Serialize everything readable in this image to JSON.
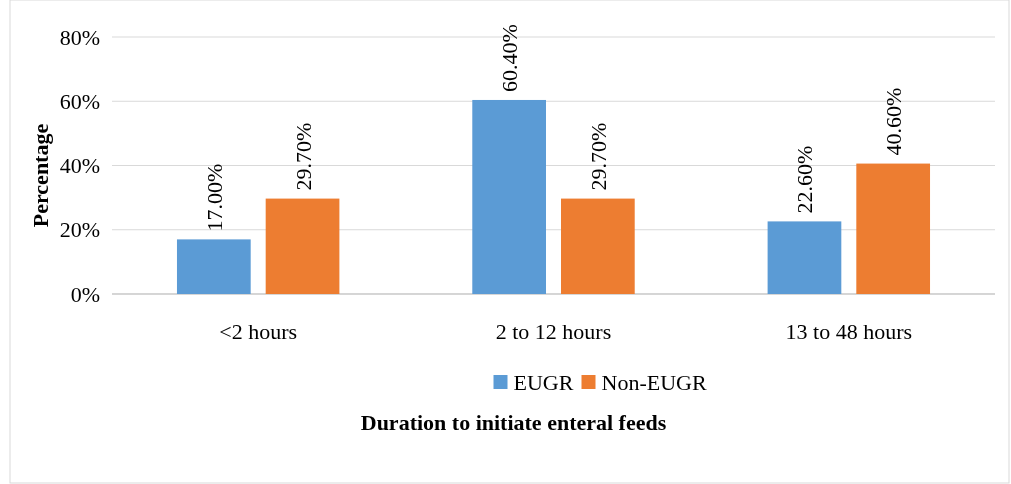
{
  "chart_data": {
    "type": "bar",
    "xlabel": "Duration to initiate enteral feeds",
    "ylabel": "Percentage",
    "categories": [
      "<2 hours",
      "2 to 12 hours",
      "13 to 48 hours"
    ],
    "series": [
      {
        "name": "EUGR",
        "color": "#5b9bd5",
        "values": [
          17,
          60.4,
          22.6
        ],
        "value_labels": [
          "17.00%",
          "60.40%",
          "22.60%"
        ]
      },
      {
        "name": "Non-EUGR",
        "color": "#ed7d31",
        "values": [
          29.7,
          29.7,
          40.6
        ],
        "value_labels": [
          "29.70%",
          "29.70%",
          "40.60%"
        ]
      }
    ],
    "ylim": [
      0,
      80
    ],
    "yticks": [
      {
        "value": 0,
        "label": "0%"
      },
      {
        "value": 20,
        "label": "20%"
      },
      {
        "value": 40,
        "label": "40%"
      },
      {
        "value": 60,
        "label": "60%"
      },
      {
        "value": 80,
        "label": "80%"
      }
    ],
    "grid": "y",
    "legend": "bottom"
  }
}
